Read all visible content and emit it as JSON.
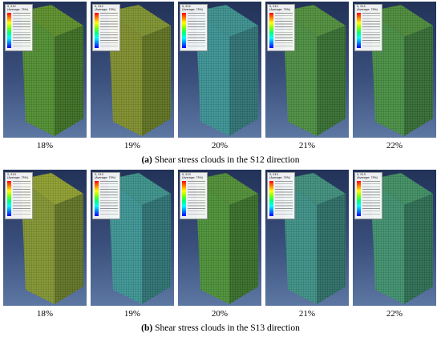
{
  "figure": {
    "row_a": {
      "caption_letter": "(a)",
      "caption_text": " Shear stress clouds in the S12 direction",
      "panels": [
        {
          "label": "18%",
          "legend_var": "S, S12",
          "legend_avg": "(Average: 75%)",
          "colors": {
            "top": "#5a8a2a",
            "front": "#4f8a30",
            "side": "#3b6a22"
          }
        },
        {
          "label": "19%",
          "legend_var": "S, S12",
          "legend_avg": "(Average: 75%)",
          "colors": {
            "top": "#7a8e2e",
            "front": "#7c8a2c",
            "side": "#5c6e20"
          }
        },
        {
          "label": "20%",
          "legend_var": "S, S12",
          "legend_avg": "(Average: 75%)",
          "colors": {
            "top": "#3a8c8a",
            "front": "#3a8e90",
            "side": "#2e6e70"
          }
        },
        {
          "label": "21%",
          "legend_var": "S, S12",
          "legend_avg": "(Average: 75%)",
          "colors": {
            "top": "#4e8a3a",
            "front": "#4a8a40",
            "side": "#356a30"
          }
        },
        {
          "label": "22%",
          "legend_var": "S, S12",
          "legend_avg": "(Average: 75%)",
          "colors": {
            "top": "#4a8638",
            "front": "#468a42",
            "side": "#336832"
          }
        }
      ]
    },
    "row_b": {
      "caption_letter": "(b)",
      "caption_text": " Shear stress clouds in the S13 direction",
      "panels": [
        {
          "label": "18%",
          "legend_var": "S, S13",
          "legend_avg": "(Average: 75%)",
          "colors": {
            "top": "#8a9a2e",
            "front": "#7e9030",
            "side": "#5e7024"
          }
        },
        {
          "label": "19%",
          "legend_var": "S, S13",
          "legend_avg": "(Average: 75%)",
          "colors": {
            "top": "#3a8e86",
            "front": "#3c9090",
            "side": "#2c6e6e"
          }
        },
        {
          "label": "20%",
          "legend_var": "S, S13",
          "legend_avg": "(Average: 75%)",
          "colors": {
            "top": "#4e8a34",
            "front": "#4a8c36",
            "side": "#366a28"
          }
        },
        {
          "label": "21%",
          "legend_var": "S, S13",
          "legend_avg": "(Average: 75%)",
          "colors": {
            "top": "#3e8a78",
            "front": "#3c8c82",
            "side": "#2c6a62"
          }
        },
        {
          "label": "22%",
          "legend_var": "S, S13",
          "legend_avg": "(Average: 75%)",
          "colors": {
            "top": "#3e8a60",
            "front": "#3e8c6a",
            "side": "#2c6a50"
          }
        }
      ]
    }
  }
}
